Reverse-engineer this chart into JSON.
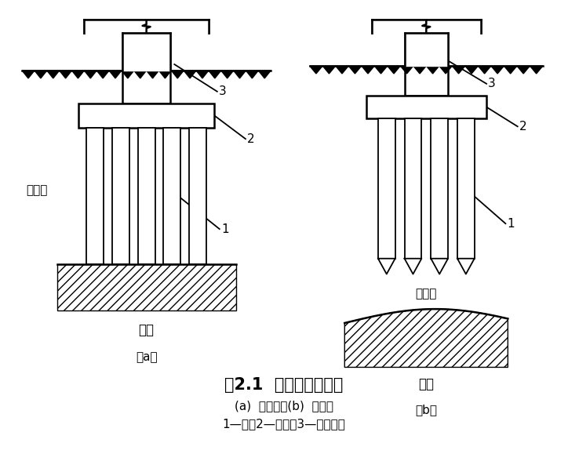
{
  "title": "图2.1  端承桩与摩擦桩",
  "subtitle1": "(a)  端承桩；(b)  摩擦桩",
  "subtitle2": "1—桩；2—承台；3—上部结构",
  "label_a": "（a）",
  "label_b": "（b）",
  "soft_layer_a": "软土层",
  "soft_layer_b": "软土层",
  "hard_layer_a": "硬层",
  "hard_layer_b": "硬层",
  "bg_color": "#ffffff",
  "line_color": "#000000"
}
